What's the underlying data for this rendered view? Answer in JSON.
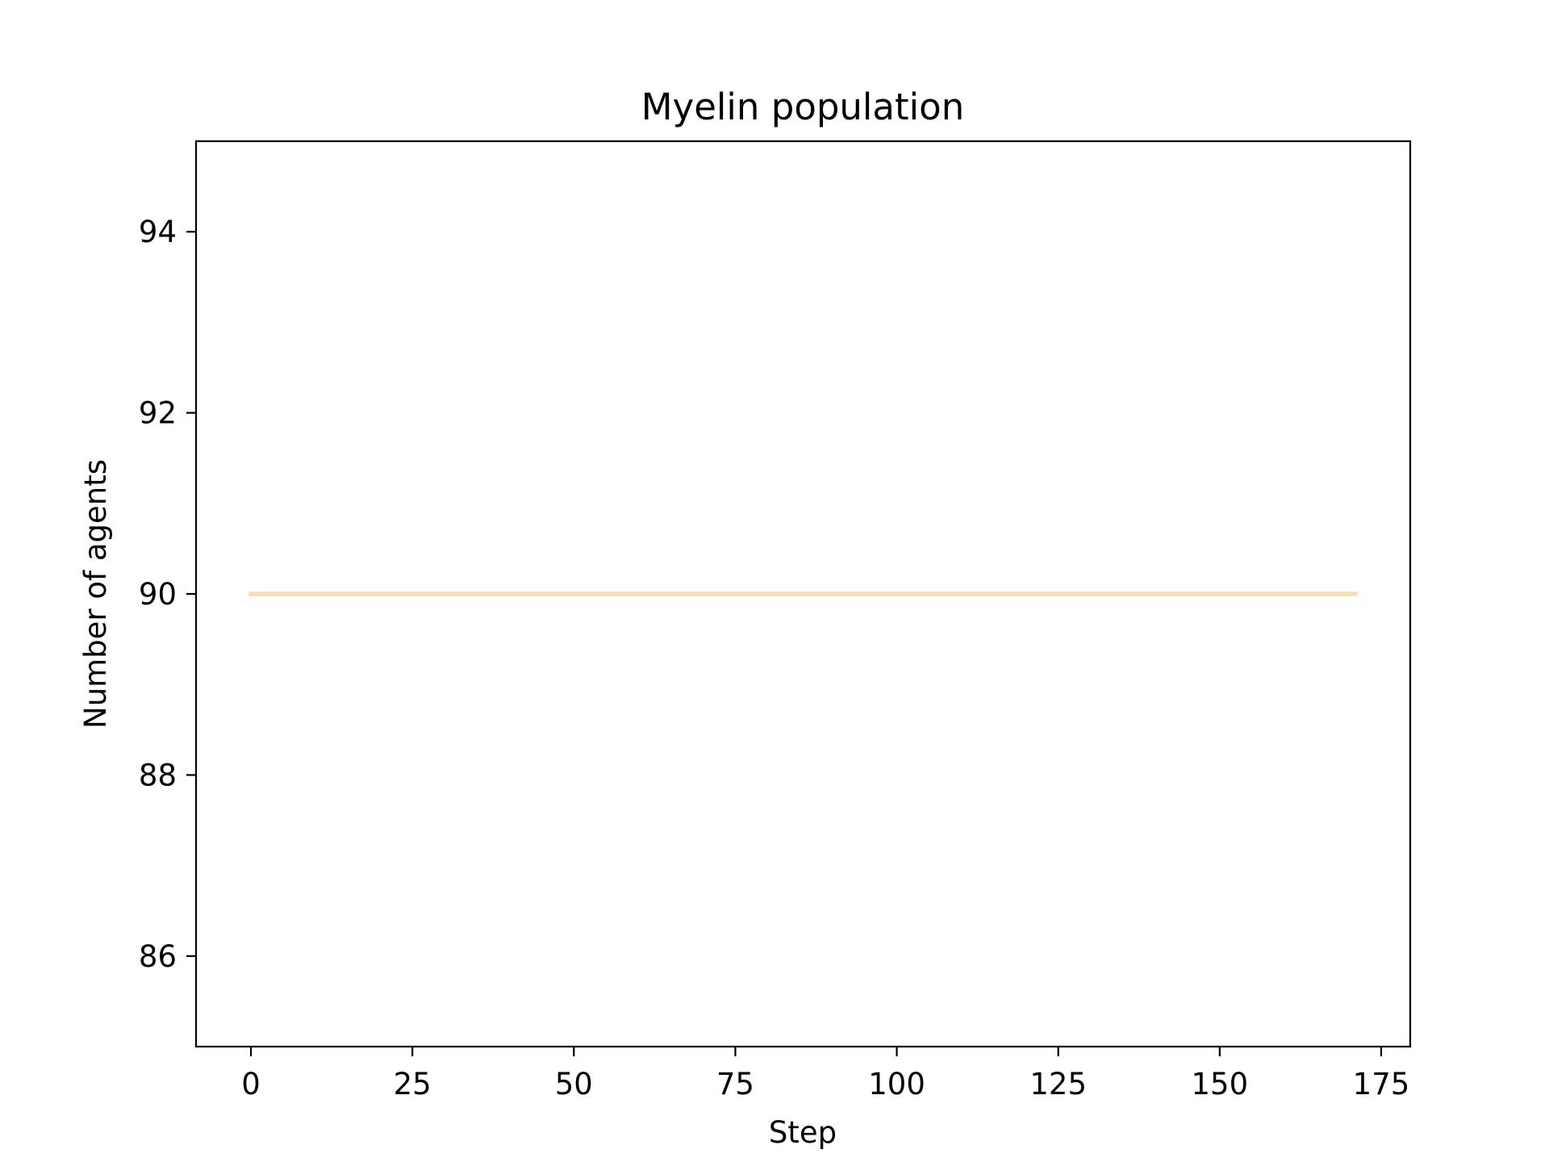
{
  "chart_data": {
    "type": "line",
    "title": "Myelin population",
    "xlabel": "Step",
    "ylabel": "Number of agents",
    "xlim": [
      -8.5,
      179.5
    ],
    "ylim": [
      85,
      95
    ],
    "xticks": [
      0,
      25,
      50,
      75,
      100,
      125,
      150,
      175
    ],
    "yticks": [
      86,
      88,
      90,
      92,
      94
    ],
    "grid": false,
    "legend": "none",
    "series": [
      {
        "color": "#f5deb3",
        "x": [
          0,
          171
        ],
        "y": [
          90,
          90
        ]
      }
    ]
  }
}
